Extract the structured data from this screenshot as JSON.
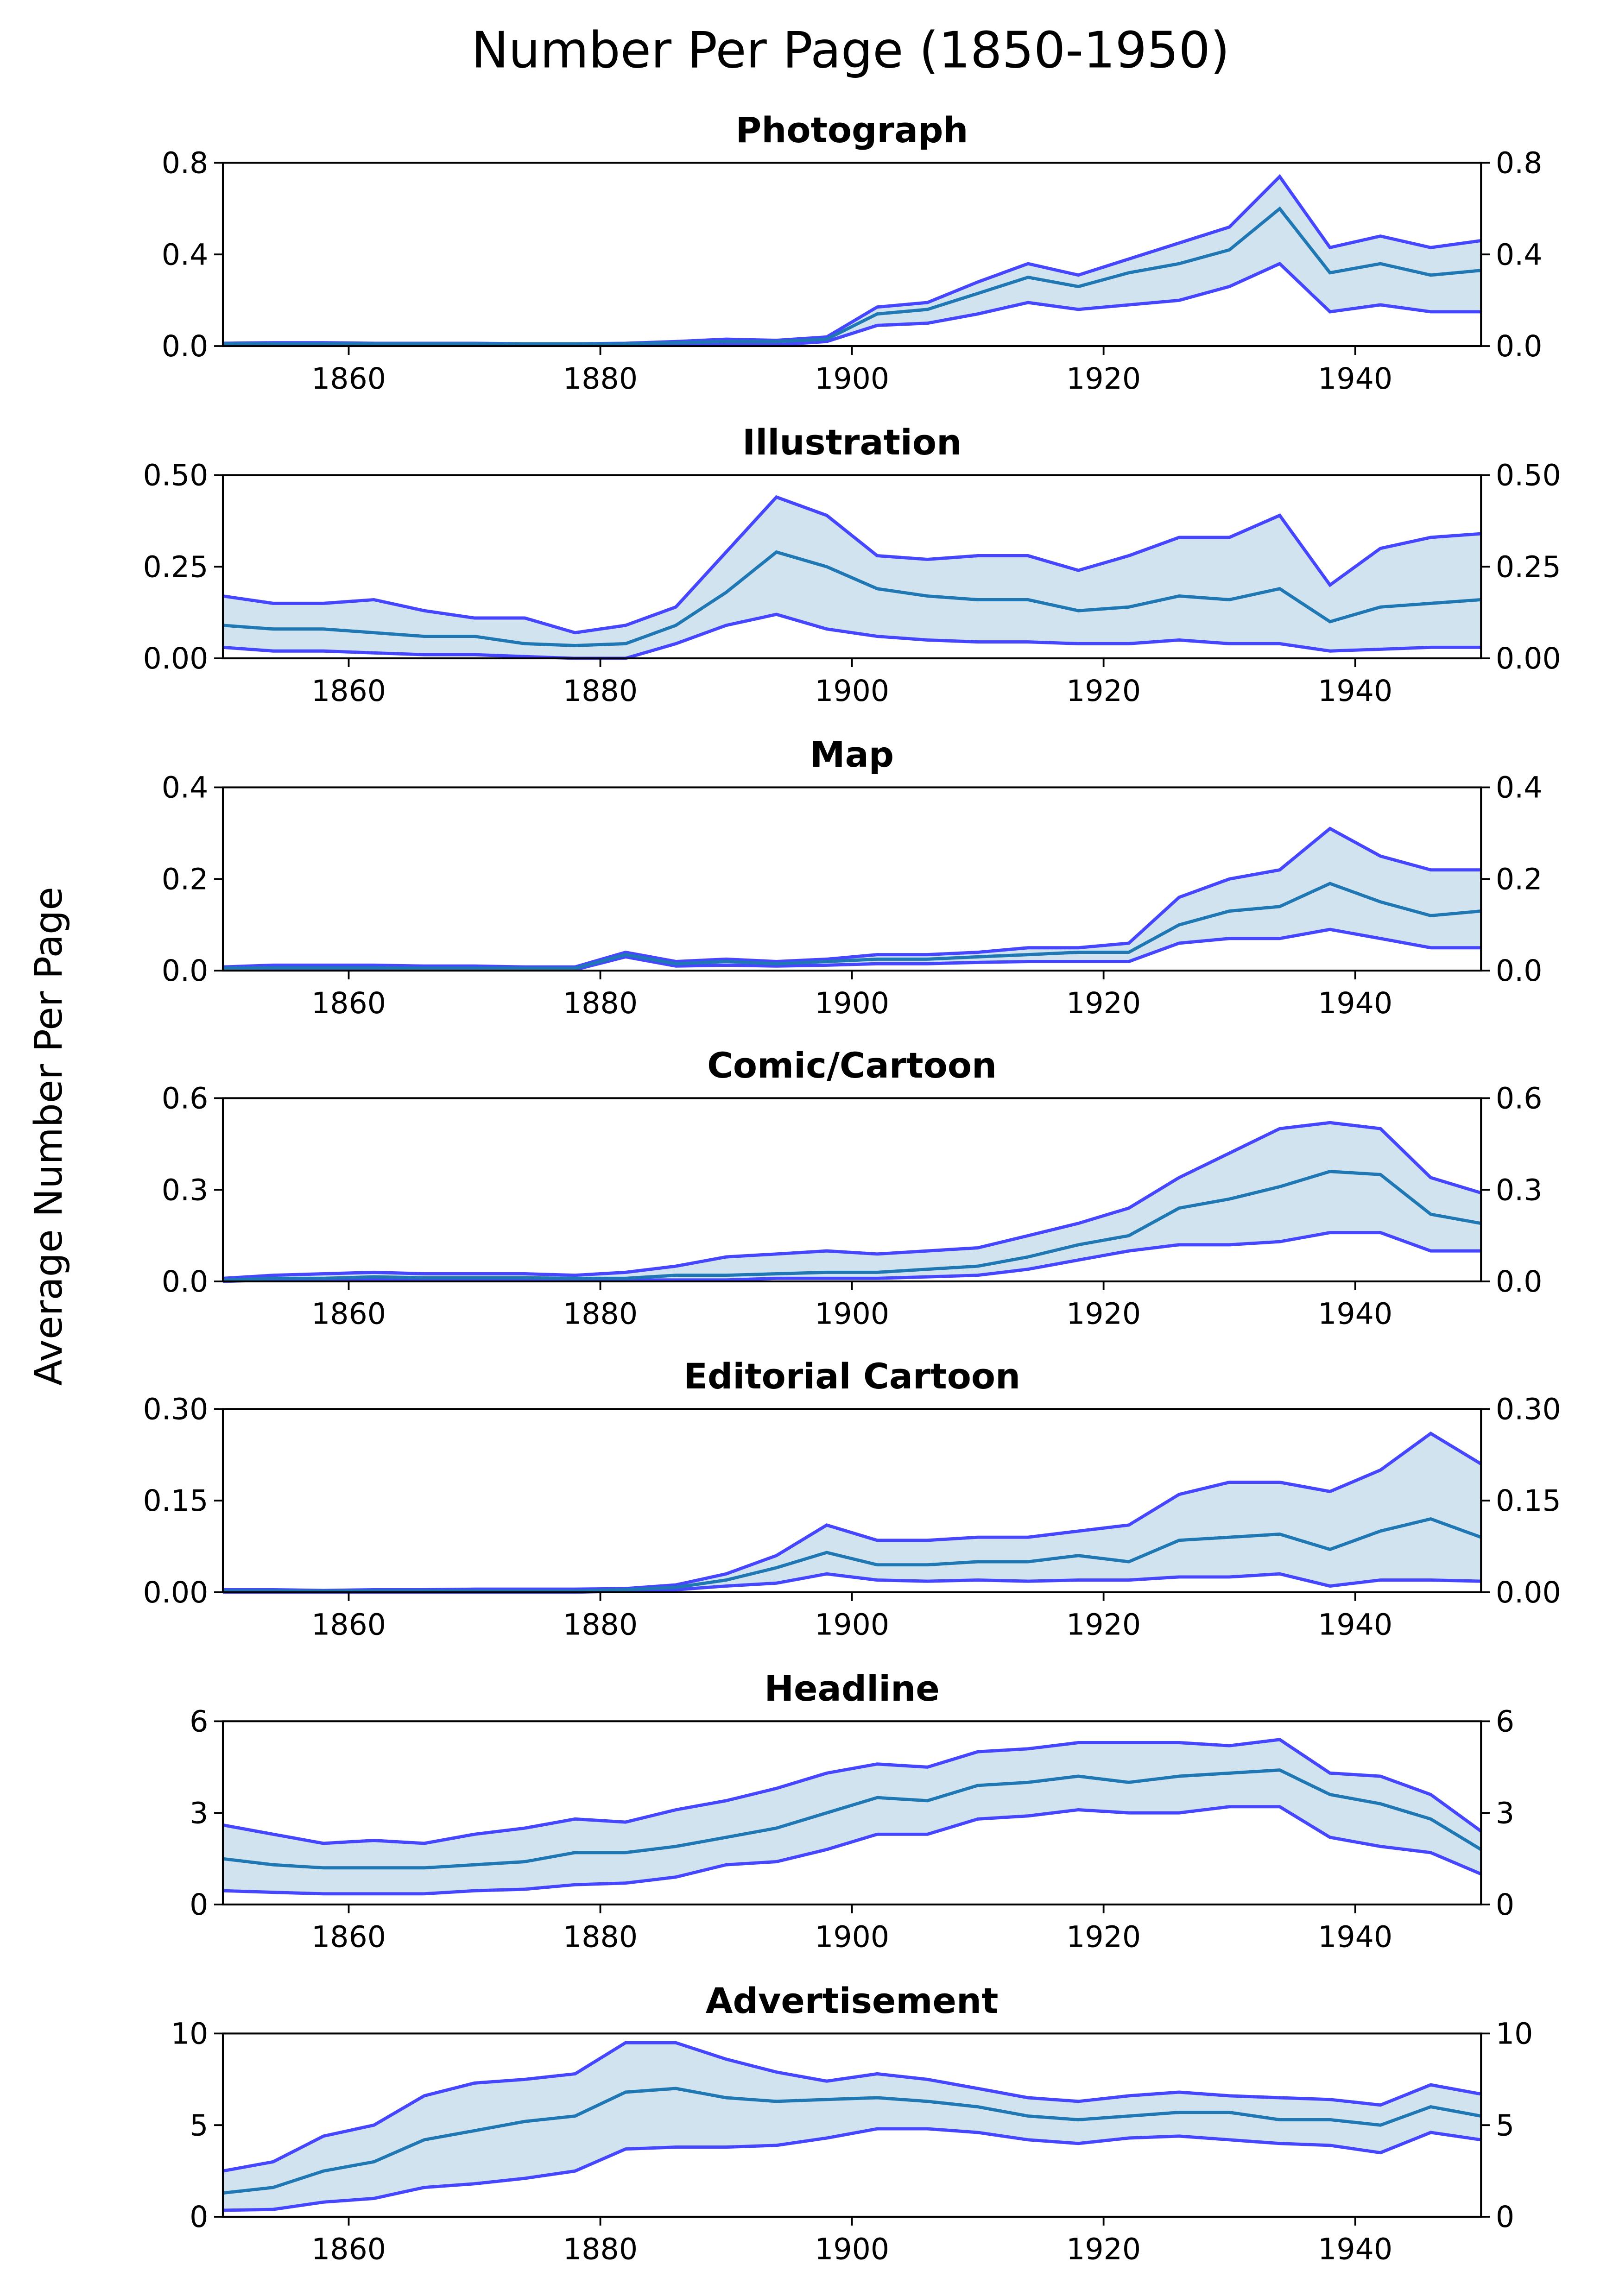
{
  "chart_data": {
    "title": "Number Per Page (1850-1950)",
    "ylabel": "Average Number Per Page",
    "colors": {
      "mean": "#1f77b4",
      "bounds": "#4646ff",
      "band": "#d2e3f0"
    },
    "xlim": [
      1850,
      1950
    ],
    "xticks": [
      1860,
      1880,
      1900,
      1920,
      1940
    ],
    "x": [
      1850,
      1854,
      1858,
      1862,
      1866,
      1870,
      1874,
      1878,
      1882,
      1886,
      1890,
      1894,
      1898,
      1902,
      1906,
      1910,
      1914,
      1918,
      1922,
      1926,
      1930,
      1934,
      1938,
      1942,
      1946,
      1950
    ],
    "panels": [
      {
        "type": "line",
        "title": "Photograph",
        "ylim": [
          0,
          0.8
        ],
        "yticks": [
          "0.0",
          "0.4",
          "0.8"
        ],
        "ytick_values": [
          0,
          0.4,
          0.8
        ],
        "mean": [
          0.01,
          0.01,
          0.01,
          0.01,
          0.01,
          0.01,
          0.01,
          0.01,
          0.01,
          0.015,
          0.02,
          0.02,
          0.03,
          0.14,
          0.16,
          0.23,
          0.3,
          0.26,
          0.32,
          0.36,
          0.42,
          0.6,
          0.32,
          0.36,
          0.31,
          0.33
        ],
        "upper": [
          0.012,
          0.015,
          0.015,
          0.012,
          0.012,
          0.012,
          0.01,
          0.01,
          0.012,
          0.02,
          0.03,
          0.025,
          0.04,
          0.17,
          0.19,
          0.28,
          0.36,
          0.31,
          0.38,
          0.45,
          0.52,
          0.74,
          0.43,
          0.48,
          0.43,
          0.46
        ],
        "lower": [
          0.005,
          0.005,
          0.005,
          0.005,
          0.005,
          0.005,
          0.005,
          0.005,
          0.005,
          0.005,
          0.005,
          0.005,
          0.02,
          0.09,
          0.1,
          0.14,
          0.19,
          0.16,
          0.18,
          0.2,
          0.26,
          0.36,
          0.15,
          0.18,
          0.15,
          0.15
        ]
      },
      {
        "type": "line",
        "title": "Illustration",
        "ylim": [
          0,
          0.5
        ],
        "yticks": [
          "0.00",
          "0.25",
          "0.50"
        ],
        "ytick_values": [
          0,
          0.25,
          0.5
        ],
        "mean": [
          0.09,
          0.08,
          0.08,
          0.07,
          0.06,
          0.06,
          0.04,
          0.035,
          0.04,
          0.09,
          0.18,
          0.29,
          0.25,
          0.19,
          0.17,
          0.16,
          0.16,
          0.13,
          0.14,
          0.17,
          0.16,
          0.19,
          0.1,
          0.14,
          0.15,
          0.16
        ],
        "upper": [
          0.17,
          0.15,
          0.15,
          0.16,
          0.13,
          0.11,
          0.11,
          0.07,
          0.09,
          0.14,
          0.29,
          0.44,
          0.39,
          0.28,
          0.27,
          0.28,
          0.28,
          0.24,
          0.28,
          0.33,
          0.33,
          0.39,
          0.2,
          0.3,
          0.33,
          0.34
        ],
        "lower": [
          0.03,
          0.02,
          0.02,
          0.015,
          0.01,
          0.01,
          0.005,
          0,
          0,
          0.04,
          0.09,
          0.12,
          0.08,
          0.06,
          0.05,
          0.045,
          0.045,
          0.04,
          0.04,
          0.05,
          0.04,
          0.04,
          0.02,
          0.025,
          0.03,
          0.03
        ]
      },
      {
        "type": "line",
        "title": "Map",
        "ylim": [
          0,
          0.4
        ],
        "yticks": [
          "0.0",
          "0.2",
          "0.4"
        ],
        "ytick_values": [
          0,
          0.2,
          0.4
        ],
        "mean": [
          0.005,
          0.006,
          0.006,
          0.006,
          0.005,
          0.005,
          0.005,
          0.005,
          0.035,
          0.015,
          0.02,
          0.015,
          0.02,
          0.025,
          0.025,
          0.03,
          0.035,
          0.04,
          0.04,
          0.1,
          0.13,
          0.14,
          0.19,
          0.15,
          0.12,
          0.13
        ],
        "upper": [
          0.008,
          0.012,
          0.012,
          0.012,
          0.01,
          0.01,
          0.008,
          0.008,
          0.04,
          0.02,
          0.025,
          0.02,
          0.025,
          0.035,
          0.035,
          0.04,
          0.05,
          0.05,
          0.06,
          0.16,
          0.2,
          0.22,
          0.31,
          0.25,
          0.22,
          0.22
        ],
        "lower": [
          0.002,
          0.002,
          0.002,
          0.002,
          0.002,
          0.002,
          0.002,
          0.002,
          0.03,
          0.01,
          0.012,
          0.01,
          0.012,
          0.015,
          0.015,
          0.018,
          0.02,
          0.02,
          0.02,
          0.06,
          0.07,
          0.07,
          0.09,
          0.07,
          0.05,
          0.05
        ]
      },
      {
        "type": "line",
        "title": "Comic/Cartoon",
        "ylim": [
          0,
          0.6
        ],
        "yticks": [
          "0.0",
          "0.3",
          "0.6"
        ],
        "ytick_values": [
          0,
          0.3,
          0.6
        ],
        "mean": [
          0.005,
          0.01,
          0.01,
          0.015,
          0.012,
          0.012,
          0.012,
          0.01,
          0.01,
          0.02,
          0.02,
          0.025,
          0.03,
          0.03,
          0.04,
          0.05,
          0.08,
          0.12,
          0.15,
          0.24,
          0.27,
          0.31,
          0.36,
          0.35,
          0.22,
          0.19
        ],
        "upper": [
          0.01,
          0.02,
          0.025,
          0.03,
          0.025,
          0.025,
          0.025,
          0.02,
          0.03,
          0.05,
          0.08,
          0.09,
          0.1,
          0.09,
          0.1,
          0.11,
          0.15,
          0.19,
          0.24,
          0.34,
          0.42,
          0.5,
          0.52,
          0.5,
          0.34,
          0.29
        ],
        "lower": [
          0,
          0.005,
          0.005,
          0.005,
          0.005,
          0.005,
          0.005,
          0.005,
          0.005,
          0.005,
          0.005,
          0.01,
          0.01,
          0.01,
          0.015,
          0.02,
          0.04,
          0.07,
          0.1,
          0.12,
          0.12,
          0.13,
          0.16,
          0.16,
          0.1,
          0.1
        ]
      },
      {
        "type": "line",
        "title": "Editorial Cartoon",
        "ylim": [
          0,
          0.3
        ],
        "yticks": [
          "0.00",
          "0.15",
          "0.30"
        ],
        "ytick_values": [
          0,
          0.15,
          0.3
        ],
        "mean": [
          0.002,
          0.002,
          0.002,
          0.002,
          0.002,
          0.002,
          0.002,
          0.002,
          0.004,
          0.008,
          0.02,
          0.04,
          0.065,
          0.045,
          0.045,
          0.05,
          0.05,
          0.06,
          0.05,
          0.085,
          0.09,
          0.095,
          0.07,
          0.1,
          0.12,
          0.09
        ],
        "upper": [
          0.004,
          0.004,
          0.003,
          0.004,
          0.004,
          0.005,
          0.005,
          0.005,
          0.006,
          0.012,
          0.03,
          0.06,
          0.11,
          0.085,
          0.085,
          0.09,
          0.09,
          0.1,
          0.11,
          0.16,
          0.18,
          0.18,
          0.165,
          0.2,
          0.26,
          0.21
        ],
        "lower": [
          0,
          0,
          0,
          0,
          0,
          0,
          0,
          0,
          0.002,
          0.004,
          0.01,
          0.015,
          0.03,
          0.02,
          0.018,
          0.02,
          0.018,
          0.02,
          0.02,
          0.025,
          0.025,
          0.03,
          0.01,
          0.02,
          0.02,
          0.018
        ]
      },
      {
        "type": "line",
        "title": "Headline",
        "ylim": [
          0,
          6
        ],
        "yticks": [
          "0",
          "3",
          "6"
        ],
        "ytick_values": [
          0,
          3,
          6
        ],
        "mean": [
          1.5,
          1.3,
          1.2,
          1.2,
          1.2,
          1.3,
          1.4,
          1.7,
          1.7,
          1.9,
          2.2,
          2.5,
          3.0,
          3.5,
          3.4,
          3.9,
          4.0,
          4.2,
          4.0,
          4.2,
          4.3,
          4.4,
          3.6,
          3.3,
          2.8,
          1.8
        ],
        "upper": [
          2.6,
          2.3,
          2.0,
          2.1,
          2.0,
          2.3,
          2.5,
          2.8,
          2.7,
          3.1,
          3.4,
          3.8,
          4.3,
          4.6,
          4.5,
          5.0,
          5.1,
          5.3,
          5.3,
          5.3,
          5.2,
          5.4,
          4.3,
          4.2,
          3.6,
          2.4
        ],
        "lower": [
          0.45,
          0.4,
          0.35,
          0.35,
          0.35,
          0.45,
          0.5,
          0.65,
          0.7,
          0.9,
          1.3,
          1.4,
          1.8,
          2.3,
          2.3,
          2.8,
          2.9,
          3.1,
          3.0,
          3.0,
          3.2,
          3.2,
          2.2,
          1.9,
          1.7,
          1.0
        ]
      },
      {
        "type": "line",
        "title": "Advertisement",
        "ylim": [
          0,
          10
        ],
        "yticks": [
          "0",
          "5",
          "10"
        ],
        "ytick_values": [
          0,
          5,
          10
        ],
        "mean": [
          1.3,
          1.6,
          2.5,
          3.0,
          4.2,
          4.7,
          5.2,
          5.5,
          6.8,
          7.0,
          6.5,
          6.3,
          6.4,
          6.5,
          6.3,
          6.0,
          5.5,
          5.3,
          5.5,
          5.7,
          5.7,
          5.3,
          5.3,
          5.0,
          6.0,
          5.5
        ],
        "upper": [
          2.5,
          3.0,
          4.4,
          5.0,
          6.6,
          7.3,
          7.5,
          7.8,
          9.5,
          9.5,
          8.6,
          7.9,
          7.4,
          7.8,
          7.5,
          7.0,
          6.5,
          6.3,
          6.6,
          6.8,
          6.6,
          6.5,
          6.4,
          6.1,
          7.2,
          6.7
        ],
        "lower": [
          0.35,
          0.4,
          0.8,
          1.0,
          1.6,
          1.8,
          2.1,
          2.5,
          3.7,
          3.8,
          3.8,
          3.9,
          4.3,
          4.8,
          4.8,
          4.6,
          4.2,
          4.0,
          4.3,
          4.4,
          4.2,
          4.0,
          3.9,
          3.5,
          4.6,
          4.2
        ]
      }
    ]
  }
}
